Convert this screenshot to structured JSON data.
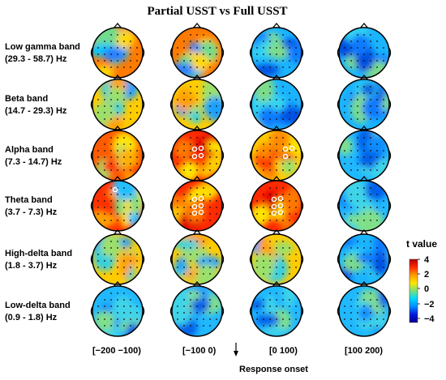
{
  "title": "Partial USST vs Full USST",
  "bands": [
    {
      "name": "Low gamma band",
      "range": "(29.3 - 58.7) Hz"
    },
    {
      "name": "Beta band",
      "range": "(14.7 - 29.3) Hz"
    },
    {
      "name": "Alpha band",
      "range": "(7.3 - 14.7) Hz"
    },
    {
      "name": "Theta band",
      "range": "(3.7 - 7.3) Hz"
    },
    {
      "name": "High-delta band",
      "range": "(1.8 - 3.7) Hz"
    },
    {
      "name": "Low-delta band",
      "range": "(0.9 - 1.8) Hz"
    }
  ],
  "time_windows": [
    "[−200 −100)",
    "[−100 0)",
    "[0 100)",
    "[100 200)"
  ],
  "response_label": "Response onset",
  "colorbar": {
    "title": "t value",
    "ticks": [
      "4",
      "2",
      "0",
      "−2",
      "−4"
    ],
    "range": [
      -4,
      4
    ],
    "colors": [
      "#b00000",
      "#ff2a00",
      "#ff9a00",
      "#ffe600",
      "#78e078",
      "#00d8ff",
      "#008cff",
      "#0018d8",
      "#000090"
    ]
  },
  "maps": [
    [
      "mixed-warm",
      "mixed-warm",
      "cool-blue",
      "cool-blue"
    ],
    [
      "mixed",
      "mixed",
      "cool-blue",
      "cool-blue"
    ],
    [
      "warm",
      "hot",
      "hot-right",
      "cool"
    ],
    [
      "warm-left",
      "hot",
      "hot",
      "cool"
    ],
    [
      "mixed",
      "mixed",
      "mixed",
      "cool-blue"
    ],
    [
      "cool",
      "cool",
      "cool",
      "cool"
    ]
  ],
  "significant_markers": [
    {
      "row": 2,
      "col": 1,
      "count": 4
    },
    {
      "row": 2,
      "col": 2,
      "count": 3
    },
    {
      "row": 3,
      "col": 0,
      "count": 1
    },
    {
      "row": 3,
      "col": 1,
      "count": 6
    },
    {
      "row": 3,
      "col": 2,
      "count": 6
    }
  ]
}
